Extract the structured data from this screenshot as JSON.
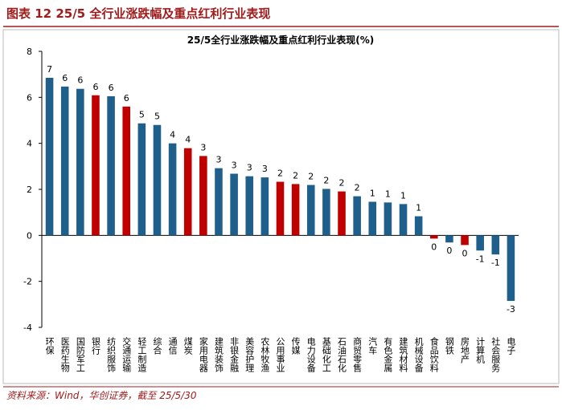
{
  "header": {
    "title": "图表 12    25/5 全行业涨跌幅及重点红利行业表现"
  },
  "chart_data": {
    "type": "bar",
    "title": "25/5全行业涨跌幅及重点红利行业表现(%)",
    "categories": [
      "环保",
      "医药生物",
      "国防军工",
      "银行",
      "纺织服饰",
      "交通运输",
      "轻工制造",
      "综合",
      "通信",
      "煤炭",
      "家用电器",
      "建筑装饰",
      "非银金融",
      "美容护理",
      "农林牧渔",
      "公用事业",
      "传媒",
      "电力设备",
      "基础化工",
      "石油石化",
      "商贸零售",
      "汽车",
      "有色金属",
      "建筑材料",
      "机械设备",
      "食品饮料",
      "钢铁",
      "房地产",
      "计算机",
      "社会服务",
      "电子"
    ],
    "values": [
      6.85,
      6.47,
      6.37,
      6.09,
      6.05,
      5.6,
      4.87,
      4.8,
      4.0,
      3.79,
      3.45,
      2.92,
      2.68,
      2.57,
      2.52,
      2.33,
      2.23,
      2.19,
      2.02,
      1.91,
      1.7,
      1.46,
      1.43,
      1.36,
      0.83,
      -0.14,
      -0.31,
      -0.42,
      -0.66,
      -0.83,
      -2.85
    ],
    "value_labels": [
      "7",
      "6",
      "6",
      "6",
      "6",
      "6",
      "5",
      "5",
      "4",
      "4",
      "3",
      "3",
      "3",
      "3",
      "3",
      "2",
      "2",
      "2",
      "2",
      "2",
      "2",
      "1",
      "1",
      "1",
      "1",
      "0",
      "0",
      "0",
      "-1",
      "-1",
      "-3"
    ],
    "colors": [
      "#1f5f8b",
      "#1f5f8b",
      "#1f5f8b",
      "#c00000",
      "#1f5f8b",
      "#c00000",
      "#1f5f8b",
      "#1f5f8b",
      "#1f5f8b",
      "#c00000",
      "#c00000",
      "#1f5f8b",
      "#1f5f8b",
      "#1f5f8b",
      "#1f5f8b",
      "#c00000",
      "#c00000",
      "#1f5f8b",
      "#1f5f8b",
      "#c00000",
      "#1f5f8b",
      "#1f5f8b",
      "#1f5f8b",
      "#1f5f8b",
      "#1f5f8b",
      "#c00000",
      "#1f5f8b",
      "#c00000",
      "#1f5f8b",
      "#1f5f8b",
      "#1f5f8b"
    ],
    "ylim": [
      -4,
      8
    ],
    "yticks": [
      -4,
      -2,
      0,
      2,
      4,
      6,
      8
    ],
    "grid": false
  },
  "footer": {
    "source": "资料来源：Wind，华创证券，截至 25/5/30"
  }
}
